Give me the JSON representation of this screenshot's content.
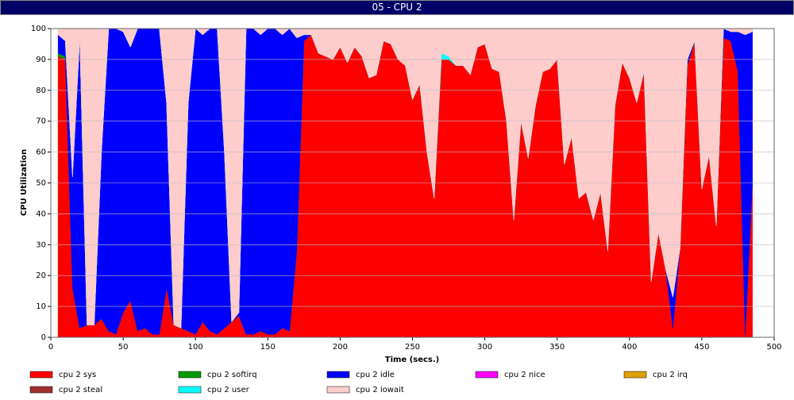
{
  "chart_data": {
    "type": "stacked_area",
    "title": "05 - CPU 2",
    "x_label": "Time (secs.)",
    "y_label": "CPU Utilization",
    "xlim": [
      0,
      500
    ],
    "xticks": [
      0,
      50,
      100,
      150,
      200,
      250,
      300,
      350,
      400,
      450,
      500
    ],
    "ylim": [
      0,
      100
    ],
    "yticks": [
      0,
      10,
      20,
      30,
      40,
      50,
      60,
      70,
      80,
      90,
      100
    ],
    "grid": true,
    "x": [
      5,
      10,
      15,
      20,
      25,
      30,
      35,
      40,
      45,
      50,
      55,
      60,
      65,
      70,
      75,
      80,
      85,
      90,
      95,
      100,
      105,
      110,
      115,
      120,
      125,
      130,
      135,
      140,
      145,
      150,
      155,
      160,
      165,
      170,
      175,
      180,
      185,
      190,
      195,
      200,
      205,
      210,
      215,
      220,
      225,
      230,
      235,
      240,
      245,
      250,
      255,
      260,
      265,
      270,
      275,
      280,
      285,
      290,
      295,
      300,
      305,
      310,
      315,
      320,
      325,
      330,
      335,
      340,
      345,
      350,
      355,
      360,
      365,
      370,
      375,
      380,
      385,
      390,
      395,
      400,
      405,
      410,
      415,
      420,
      425,
      430,
      435,
      440,
      445,
      450,
      455,
      460,
      465,
      470,
      475,
      480,
      485
    ],
    "series": [
      {
        "name": "cpu 2 sys",
        "color": "#ff0000",
        "values": [
          91,
          90,
          16,
          3,
          4,
          4,
          6,
          2,
          1,
          8,
          12,
          2,
          3,
          1,
          1,
          16,
          4,
          3,
          2,
          1,
          5,
          2,
          1,
          3,
          5,
          7,
          1,
          1,
          2,
          1,
          1,
          3,
          2,
          28,
          96,
          98,
          92,
          91,
          90,
          94,
          89,
          94,
          91,
          84,
          85,
          96,
          95,
          90,
          88,
          77,
          82,
          60,
          45,
          90,
          90,
          88,
          88,
          85,
          94,
          95,
          87,
          86,
          70,
          38,
          70,
          58,
          75,
          86,
          87,
          90,
          56,
          65,
          45,
          47,
          38,
          47,
          28,
          75,
          89,
          84,
          76,
          86,
          18,
          34,
          22,
          3,
          29,
          88,
          96,
          48,
          59,
          36,
          97,
          96,
          86,
          1,
          50
        ]
      },
      {
        "name": "cpu 2 softirq",
        "color": "#009900",
        "values": [
          1,
          1,
          0,
          0,
          0,
          0,
          0,
          0,
          0,
          0,
          0,
          0,
          0,
          0,
          0,
          0,
          0,
          0,
          0,
          0,
          0,
          0,
          0,
          0,
          0,
          0,
          0,
          0,
          0,
          0,
          0,
          0,
          0,
          0,
          0,
          0,
          0,
          0,
          0,
          0,
          0,
          0,
          0,
          0,
          0,
          0,
          0,
          0,
          0,
          0,
          0,
          0,
          0,
          0,
          0,
          0,
          0,
          0,
          0,
          0,
          0,
          0,
          0,
          0,
          0,
          0,
          0,
          0,
          0,
          0,
          0,
          0,
          0,
          0,
          0,
          0,
          0,
          0,
          0,
          0,
          0,
          0,
          0,
          0,
          0,
          0,
          0,
          0,
          0,
          0,
          0,
          0,
          0,
          0,
          0,
          0,
          0
        ]
      },
      {
        "name": "cpu 2 idle",
        "color": "#0000ff",
        "values": [
          6,
          5,
          36,
          94,
          0,
          0,
          54,
          98,
          99,
          91,
          82,
          98,
          97,
          99,
          99,
          60,
          0,
          0,
          74,
          99,
          93,
          98,
          99,
          57,
          0,
          1,
          99,
          99,
          96,
          99,
          99,
          95,
          98,
          69,
          2,
          0,
          0,
          0,
          0,
          0,
          0,
          0,
          0,
          0,
          0,
          0,
          0,
          0,
          0,
          0,
          0,
          0,
          0,
          0,
          0,
          0,
          0,
          0,
          0,
          0,
          0,
          0,
          0,
          0,
          0,
          0,
          0,
          0,
          0,
          0,
          0,
          0,
          0,
          0,
          0,
          0,
          0,
          0,
          0,
          0,
          0,
          0,
          0,
          0,
          0,
          10,
          0,
          2,
          0,
          0,
          0,
          0,
          3,
          3,
          13,
          97,
          49
        ]
      },
      {
        "name": "cpu 2 nice",
        "color": "#ff00ff",
        "values": [
          0,
          0,
          0,
          0,
          0,
          0,
          0,
          0,
          0,
          0,
          0,
          0,
          0,
          0,
          0,
          0,
          0,
          0,
          0,
          0,
          0,
          0,
          0,
          0,
          0,
          0,
          0,
          0,
          0,
          0,
          0,
          0,
          0,
          0,
          0,
          0,
          0,
          0,
          0,
          0,
          0,
          0,
          0,
          0,
          0,
          0,
          0,
          0,
          0,
          0,
          0,
          0,
          0,
          0,
          0,
          0,
          0,
          0,
          0,
          0,
          0,
          0,
          0,
          0,
          0,
          0,
          0,
          0,
          0,
          0,
          0,
          0,
          0,
          0,
          0,
          0,
          0,
          0,
          0,
          0,
          0,
          0,
          0,
          0,
          0,
          0,
          0,
          0,
          0,
          0,
          0,
          0,
          0,
          0,
          0,
          0,
          0
        ]
      },
      {
        "name": "cpu 2 irq",
        "color": "#e0a000",
        "values": [
          0,
          0,
          0,
          0,
          0,
          0,
          0,
          0,
          0,
          0,
          0,
          0,
          0,
          0,
          0,
          0,
          0,
          0,
          0,
          0,
          0,
          0,
          0,
          0,
          0,
          0,
          0,
          0,
          0,
          0,
          0,
          0,
          0,
          0,
          0,
          0,
          0,
          0,
          0,
          0,
          0,
          0,
          0,
          0,
          0,
          0,
          0,
          0,
          0,
          0,
          0,
          0,
          0,
          0,
          0,
          0,
          0,
          0,
          0,
          0,
          0,
          0,
          0,
          0,
          0,
          0,
          0,
          0,
          0,
          0,
          0,
          0,
          0,
          0,
          0,
          0,
          0,
          0,
          0,
          0,
          0,
          0,
          0,
          0,
          0,
          0,
          0,
          0,
          0,
          0,
          0,
          0,
          0,
          0,
          0,
          0,
          0
        ]
      },
      {
        "name": "cpu 2 steal",
        "color": "#a03030",
        "values": [
          0,
          0,
          0,
          0,
          0,
          0,
          0,
          0,
          0,
          0,
          0,
          0,
          0,
          0,
          0,
          0,
          0,
          0,
          0,
          0,
          0,
          0,
          0,
          0,
          0,
          0,
          0,
          0,
          0,
          0,
          0,
          0,
          0,
          0,
          0,
          0,
          0,
          0,
          0,
          0,
          0,
          0,
          0,
          0,
          0,
          0,
          0,
          0,
          0,
          0,
          0,
          0,
          0,
          0,
          0,
          0,
          0,
          0,
          0,
          0,
          0,
          0,
          0,
          0,
          0,
          0,
          0,
          0,
          0,
          0,
          0,
          0,
          0,
          0,
          0,
          0,
          0,
          0,
          0,
          0,
          0,
          0,
          0,
          0,
          0,
          0,
          0,
          0,
          0,
          0,
          0,
          0,
          0,
          0,
          0,
          0,
          0
        ]
      },
      {
        "name": "cpu 2 user",
        "color": "#00ffff",
        "values": [
          0,
          0,
          0,
          0,
          0,
          0,
          0,
          0,
          0,
          0,
          0,
          0,
          0,
          0,
          0,
          0,
          0,
          0,
          0,
          0,
          0,
          0,
          0,
          0,
          0,
          0,
          0,
          0,
          0,
          0,
          0,
          0,
          0,
          0,
          0,
          0,
          0,
          0,
          0,
          0,
          0,
          0,
          0,
          0,
          0,
          0,
          0,
          0,
          0,
          0,
          0,
          0,
          0,
          2,
          1,
          0,
          0,
          0,
          0,
          0,
          0,
          0,
          0,
          0,
          0,
          0,
          0,
          0,
          0,
          0,
          0,
          0,
          0,
          0,
          0,
          0,
          0,
          0,
          0,
          0,
          0,
          0,
          0,
          0,
          0,
          0,
          0,
          0,
          0,
          0,
          0,
          0,
          0,
          0,
          0,
          0,
          0
        ]
      },
      {
        "name": "cpu 2 iowait",
        "color": "#ffcccc",
        "values": [
          2,
          4,
          48,
          3,
          96,
          96,
          40,
          0,
          0,
          1,
          6,
          0,
          0,
          0,
          0,
          24,
          96,
          97,
          24,
          0,
          2,
          0,
          0,
          40,
          95,
          92,
          0,
          0,
          2,
          0,
          0,
          2,
          0,
          3,
          2,
          2,
          8,
          9,
          10,
          6,
          11,
          6,
          9,
          16,
          15,
          4,
          5,
          10,
          12,
          23,
          18,
          40,
          55,
          8,
          9,
          12,
          12,
          15,
          6,
          5,
          13,
          14,
          30,
          62,
          30,
          42,
          25,
          14,
          13,
          10,
          44,
          35,
          55,
          53,
          62,
          53,
          72,
          25,
          11,
          16,
          24,
          14,
          82,
          66,
          78,
          87,
          71,
          10,
          4,
          52,
          41,
          64,
          0,
          1,
          1,
          2,
          1
        ]
      }
    ]
  }
}
